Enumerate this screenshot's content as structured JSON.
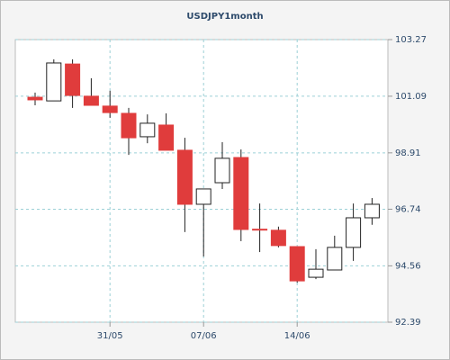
{
  "chart_data": {
    "type": "candlestick",
    "title": "USDJPY1month",
    "categories": [
      null,
      null,
      null,
      null,
      "31/05",
      null,
      null,
      null,
      null,
      "07/06",
      null,
      null,
      null,
      null,
      "14/06",
      null,
      null,
      null,
      null
    ],
    "open": [
      101.05,
      100.91,
      102.33,
      101.09,
      100.71,
      100.43,
      99.53,
      99.98,
      99.01,
      96.93,
      97.76,
      98.73,
      95.97,
      95.93,
      95.3,
      94.12,
      94.4,
      95.27,
      96.41
    ],
    "high": [
      101.23,
      102.51,
      102.51,
      101.78,
      101.3,
      100.64,
      100.39,
      100.43,
      99.49,
      97.52,
      99.32,
      99.04,
      96.96,
      96.07,
      95.3,
      95.2,
      95.72,
      96.96,
      97.17
    ],
    "low": [
      100.74,
      100.91,
      100.64,
      100.74,
      100.26,
      98.83,
      99.28,
      99.01,
      95.86,
      94.92,
      97.52,
      95.51,
      95.09,
      95.27,
      93.91,
      94.05,
      94.4,
      94.75,
      96.14
    ],
    "close": [
      100.95,
      102.37,
      101.12,
      100.74,
      100.46,
      99.49,
      100.05,
      99.01,
      96.93,
      97.52,
      98.7,
      95.96,
      95.94,
      95.34,
      93.98,
      94.43,
      95.27,
      96.41,
      96.93
    ],
    "up_color": "#ffffff",
    "down_color": "#e03c3c",
    "ylim": [
      92.39,
      103.27
    ],
    "yticks": [
      92.39,
      94.56,
      96.74,
      98.91,
      101.09,
      103.27
    ],
    "grid": true
  }
}
